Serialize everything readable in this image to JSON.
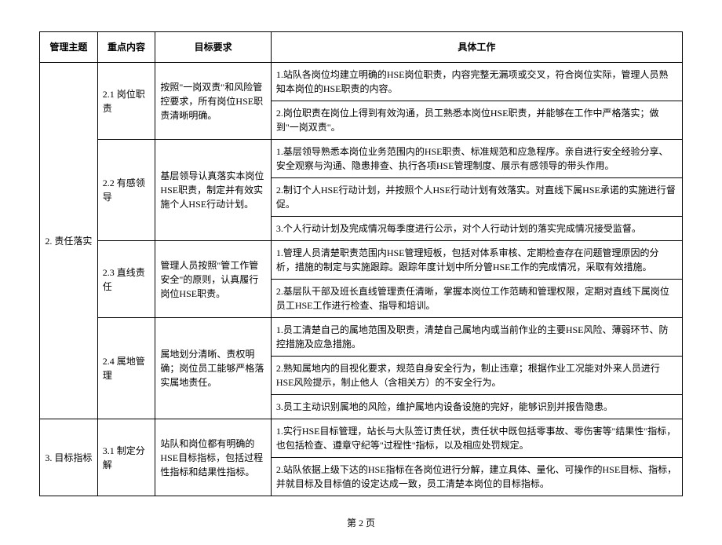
{
  "headers": {
    "theme": "管理主题",
    "key": "重点内容",
    "target": "目标要求",
    "work": "具体工作"
  },
  "themes": {
    "t2": "2. 责任落实",
    "t3": "3. 目标指标"
  },
  "keys": {
    "k21": "2.1 岗位职责",
    "k22": "2.2 有感领导",
    "k23": "2.3 直线责任",
    "k24": "2.4 属地管理",
    "k31": "3.1 制定分解"
  },
  "targets": {
    "g21": "按照\"一岗双责\"和风险管控要求，所有岗位HSE职责清晰明确。",
    "g22": "基层领导认真落实本岗位HSE职责，制定并有效实施个人HSE行动计划。",
    "g23": "管理人员按照\"管工作管安全\"的原则，认真履行岗位HSE职责。",
    "g24": "属地划分清晰、责权明确；岗位员工能够严格落实属地责任。",
    "g31": "站队和岗位都有明确的HSE目标指标，包括过程性指标和结果性指标。"
  },
  "works": {
    "w211": "1.站队各岗位均建立明确的HSE岗位职责，内容完整无漏项或交叉，符合岗位实际，管理人员熟知本岗位的HSE职责的内容。",
    "w212": "2.岗位职责在岗位上得到有效沟通，员工熟悉本岗位HSE职责，并能够在工作中严格落实；做到\"一岗双责\"。",
    "w221": "1.基层领导熟悉本岗位业务范围内的HSE职责、标准规范和应急程序。亲自进行安全经验分享、安全观察与沟通、隐患排查、执行各项HSE管理制度、展示有感领导的带头作用。",
    "w222": "2.制订个人HSE行动计划，并按照个人HSE行动计划有效落实。对直线下属HSE承诺的实施进行督促。",
    "w223": "3.个人行动计划及完成情况每季度进行公示，对个人行动计划的落实完成情况接受监督。",
    "w231": "1.管理人员清楚职责范围内HSE管理短板，包括对体系审核、定期检查存在问题管理原因的分析，措施的制定与实施跟踪。跟踪年度计划中所分管HSE工作的完成情况，采取有效措施。",
    "w232": "2.基层队干部及班长直线管理责任清晰，掌握本岗位工作范畴和管理权限，定期对直线下属岗位员工HSE工作进行检查、指导和培训。",
    "w241": "1.员工清楚自己的属地范围及职责，清楚自己属地内或当前作业的主要HSE风险、薄弱环节、防控措施及应急措施。",
    "w242": "2.熟知属地内的目视化要求，规范自身安全行为，制止违章；根据作业工况能对外来人员进行HSE风险提示，制止他人（含相关方）的不安全行为。",
    "w243": "3.员工主动识别属地的风险，维护属地内设备设施的完好，能够识别并报告隐患。",
    "w311": "1.实行HSE目标管理，站长与大队签订责任状，责任状中既包括零事故、零伤害等\"结果性\"指标，也包括检查、遵章守纪等\"过程性\"指标，以及相应处罚规定。",
    "w312": "2.站队依据上级下达的HSE指标在各岗位进行分解，建立具体、量化、可操作的HSE目标、指标，并就目标及目标值的设定达成一致，员工清楚本岗位的目标指标。"
  },
  "footer": "第 2 页"
}
